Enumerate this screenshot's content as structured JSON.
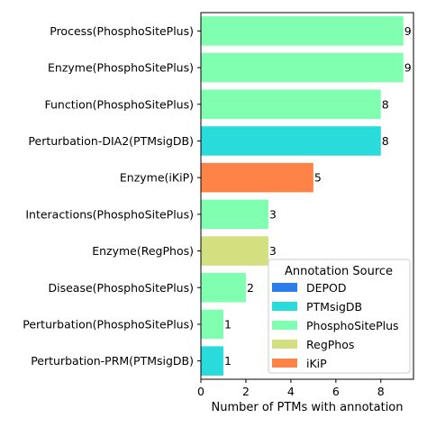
{
  "chart_data": {
    "type": "bar",
    "orientation": "horizontal",
    "categories": [
      "Process(PhosphoSitePlus)",
      "Enzyme(PhosphoSitePlus)",
      "Function(PhosphoSitePlus)",
      "Perturbation-DIA2(PTMsigDB)",
      "Enzyme(iKiP)",
      "Interactions(PhosphoSitePlus)",
      "Enzyme(RegPhos)",
      "Disease(PhosphoSitePlus)",
      "Perturbation(PhosphoSitePlus)",
      "Perturbation-PRM(PTMsigDB)"
    ],
    "values": [
      9,
      9,
      8,
      8,
      5,
      3,
      3,
      2,
      1,
      1
    ],
    "value_labels": [
      "9",
      "9",
      "8",
      "8",
      "5",
      "3",
      "3",
      "2",
      "1",
      "1"
    ],
    "bar_sources": [
      "PhosphoSitePlus",
      "PhosphoSitePlus",
      "PhosphoSitePlus",
      "PTMsigDB",
      "iKiP",
      "PhosphoSitePlus",
      "RegPhos",
      "PhosphoSitePlus",
      "PhosphoSitePlus",
      "PTMsigDB"
    ],
    "xlabel": "Number of PTMs with annotation",
    "ylabel": "",
    "xlim": [
      0,
      9.45
    ],
    "xticks": [
      0,
      2,
      4,
      6,
      8
    ],
    "grid": false,
    "legend": {
      "title": "Annotation Source",
      "placement": "bottom-right",
      "items": [
        {
          "name": "DEPOD",
          "color": "#2b7de9"
        },
        {
          "name": "PTMsigDB",
          "color": "#29dbdb"
        },
        {
          "name": "PhosphoSitePlus",
          "color": "#80ffb0"
        },
        {
          "name": "RegPhos",
          "color": "#d4df80"
        },
        {
          "name": "iKiP",
          "color": "#ff8247"
        }
      ]
    }
  }
}
